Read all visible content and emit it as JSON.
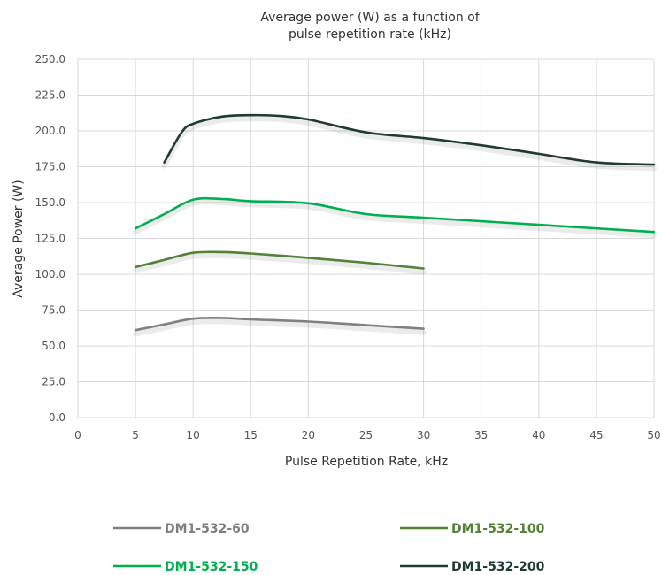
{
  "chart_data": {
    "type": "line",
    "title_lines": [
      "Average power (W) as a function of",
      "pulse repetition rate (kHz)"
    ],
    "xlabel": "Pulse Repetition Rate, kHz",
    "ylabel": "Average Power (W)",
    "xlim": [
      0,
      50
    ],
    "ylim": [
      0,
      250
    ],
    "x_ticks": [
      "0",
      "5",
      "10",
      "15",
      "20",
      "25",
      "30",
      "35",
      "40",
      "45",
      "50"
    ],
    "y_ticks": [
      "0.0",
      "25.0",
      "50.0",
      "75.0",
      "100.0",
      "125.0",
      "150.0",
      "175.0",
      "200.0",
      "225.0",
      "250.0"
    ],
    "grid": true,
    "legend_position": "bottom",
    "series": [
      {
        "name": "DM1-532-60",
        "color": "#808080",
        "text_color": "#7f7f7f",
        "x": [
          5,
          7.5,
          10,
          12.5,
          15,
          20,
          25,
          30
        ],
        "y": [
          61,
          65,
          69,
          69.5,
          68.5,
          67,
          64.5,
          62
        ]
      },
      {
        "name": "DM1-532-100",
        "color": "#538135",
        "text_color": "#538135",
        "x": [
          5,
          7.5,
          10,
          12.5,
          15,
          20,
          25,
          30
        ],
        "y": [
          105,
          110,
          115,
          115.5,
          114.5,
          111.5,
          108,
          104
        ]
      },
      {
        "name": "DM1-532-150",
        "color": "#00b050",
        "text_color": "#00b050",
        "x": [
          5,
          7.5,
          10,
          12.5,
          15,
          20,
          25,
          30,
          40,
          50
        ],
        "y": [
          132,
          142,
          152,
          152.5,
          151,
          149.5,
          142,
          139.5,
          134.5,
          129.5
        ]
      },
      {
        "name": "DM1-532-200",
        "color": "#1e3a32",
        "text_color": "#1e3a32",
        "x": [
          7.5,
          9,
          10,
          12.5,
          15,
          17.5,
          20,
          25,
          30,
          35,
          40,
          45,
          50
        ],
        "y": [
          178,
          199,
          205,
          210,
          211,
          210.5,
          208,
          199,
          195,
          190,
          184,
          178,
          176.5
        ]
      }
    ]
  }
}
